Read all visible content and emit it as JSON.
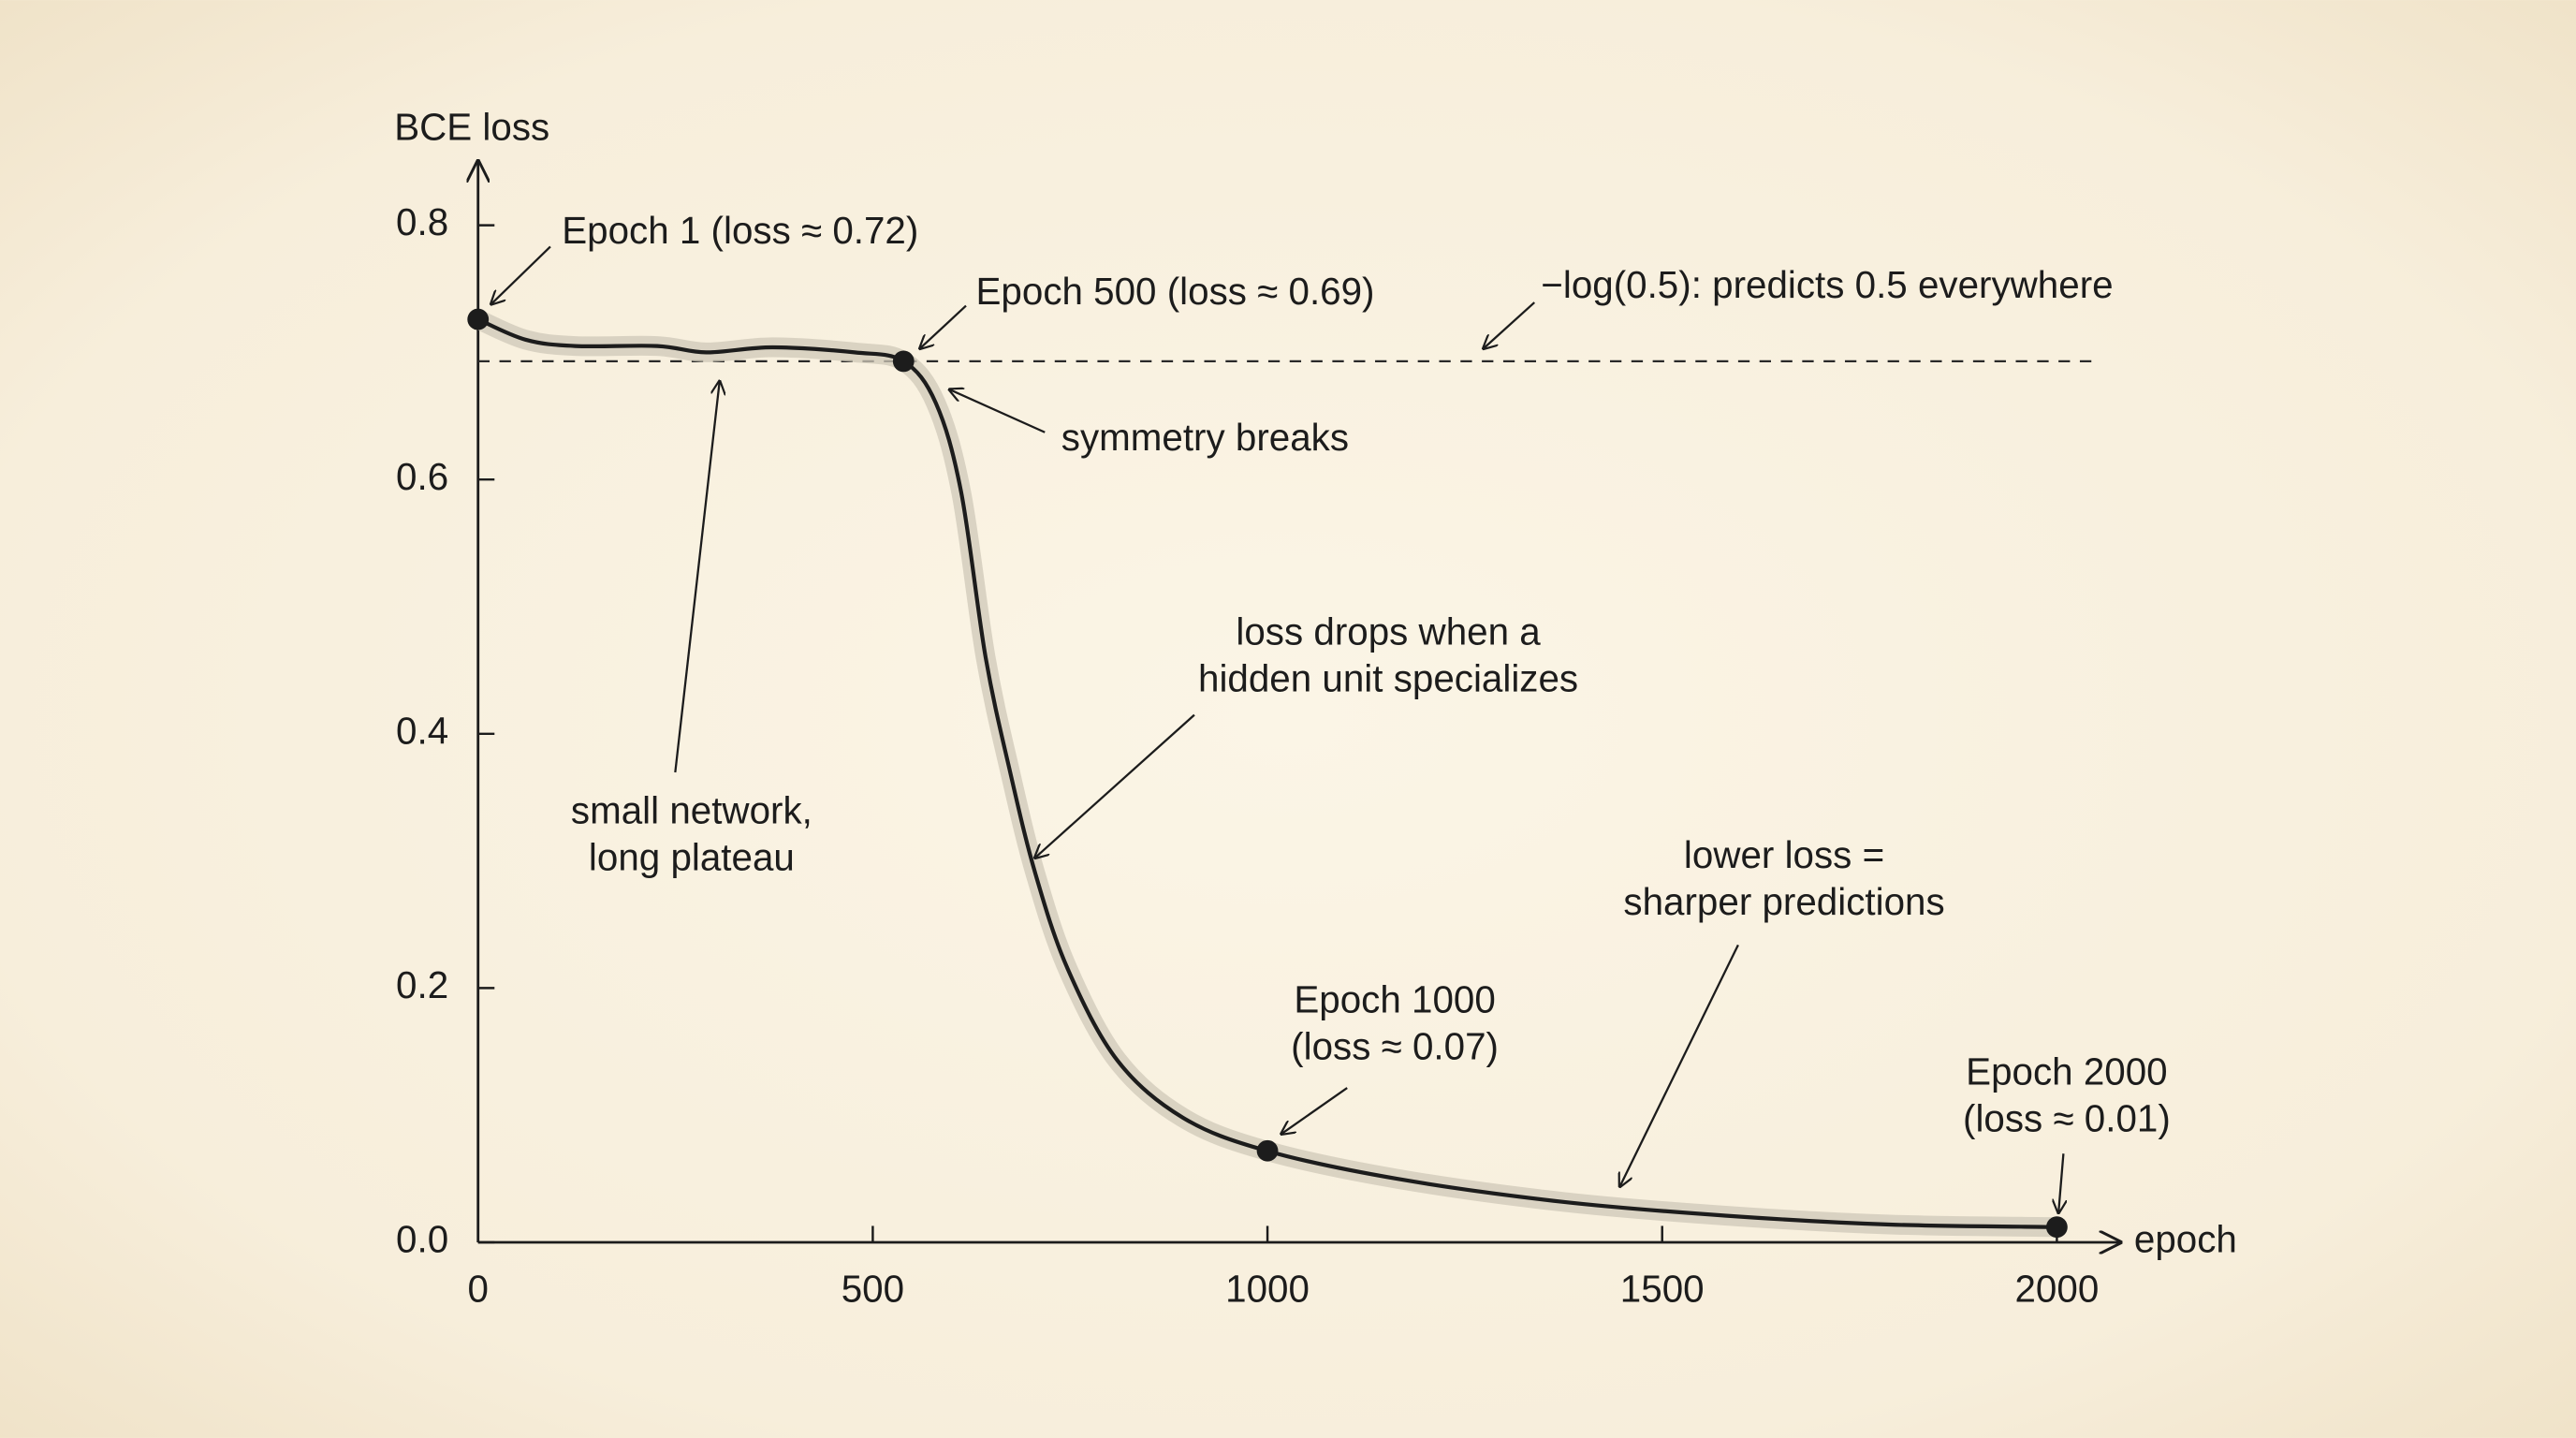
{
  "chart_data": {
    "type": "line",
    "y_label": "BCE loss",
    "x_label": "epoch",
    "xlim": [
      0,
      2080
    ],
    "ylim": [
      0,
      0.85
    ],
    "xticks": [
      0,
      500,
      1000,
      1500,
      2000
    ],
    "yticks": [
      {
        "value": 0,
        "label": "0.0"
      },
      0.2,
      0.4,
      0.6,
      0.8
    ],
    "color": "#1c1c1c",
    "x": [
      0,
      60,
      123,
      227,
      289,
      373,
      477,
      539,
      580,
      612,
      643,
      674,
      706,
      747,
      810,
      893,
      999,
      1164,
      1372,
      1580,
      1788,
      2000
    ],
    "values": [
      0.726,
      0.71,
      0.705,
      0.705,
      0.7,
      0.704,
      0.7,
      0.693,
      0.66,
      0.59,
      0.46,
      0.37,
      0.29,
      0.215,
      0.143,
      0.098,
      0.072,
      0.05,
      0.032,
      0.021,
      0.014,
      0.012
    ],
    "highlights": {
      "x": [
        0,
        539,
        1000,
        2000
      ],
      "values": [
        0.726,
        0.693,
        0.072,
        0.012
      ]
    },
    "reference_line": 0.693,
    "annotations": [
      [
        "Epoch 1 (loss ≈ 0.72)"
      ],
      [
        "Epoch 500 (loss ≈ 0.69)"
      ],
      [
        "−log(0.5): predicts 0.5 everywhere"
      ],
      [
        "symmetry breaks"
      ],
      [
        "loss drops when a",
        "hidden unit specializes"
      ],
      [
        "small network,",
        "long plateau"
      ],
      [
        "lower loss =",
        "sharper predictions"
      ],
      [
        "Epoch 1000",
        "(loss ≈ 0.07)"
      ],
      [
        "Epoch 2000",
        "(loss ≈ 0.01)"
      ]
    ]
  }
}
